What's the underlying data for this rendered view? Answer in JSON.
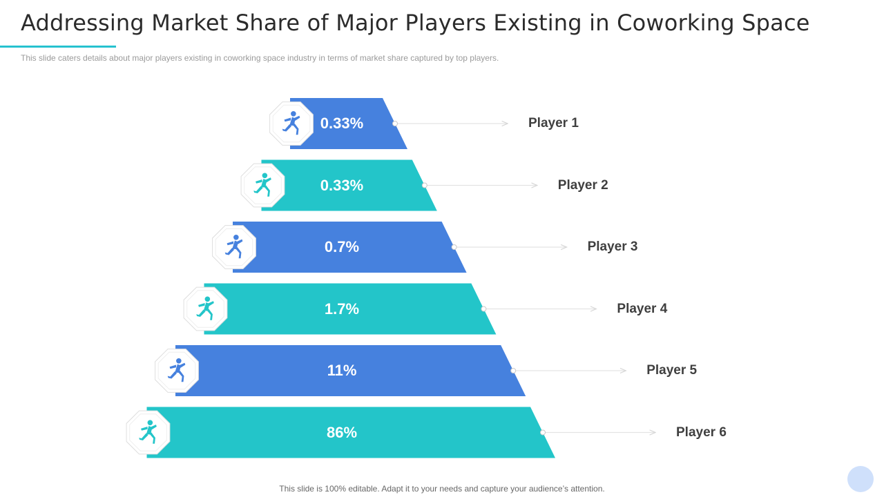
{
  "header": {
    "title": "Addressing Market Share of Major Players Existing in Coworking Space",
    "subtitle": "This slide caters details about major players existing in coworking  space industry in terms of market share captured by top players."
  },
  "pyramid": {
    "tiers": [
      {
        "player": "Player 1",
        "value": "0.33%",
        "share": 0.33,
        "color": "#4681de",
        "icon": "runner-icon"
      },
      {
        "player": "Player 2",
        "value": "0.33%",
        "share": 0.33,
        "color": "#23c5c9",
        "icon": "runner-icon"
      },
      {
        "player": "Player 3",
        "value": "0.7%",
        "share": 0.7,
        "color": "#4681de",
        "icon": "runner-icon"
      },
      {
        "player": "Player 4",
        "value": "1.7%",
        "share": 1.7,
        "color": "#23c5c9",
        "icon": "runner-icon"
      },
      {
        "player": "Player 5",
        "value": "11%",
        "share": 11,
        "color": "#4681de",
        "icon": "runner-icon"
      },
      {
        "player": "Player 6",
        "value": "86%",
        "share": 86,
        "color": "#23c5c9",
        "icon": "runner-icon"
      }
    ]
  },
  "footer": {
    "note": "This slide is 100% editable. Adapt it to your needs and capture your audience’s attention."
  }
}
